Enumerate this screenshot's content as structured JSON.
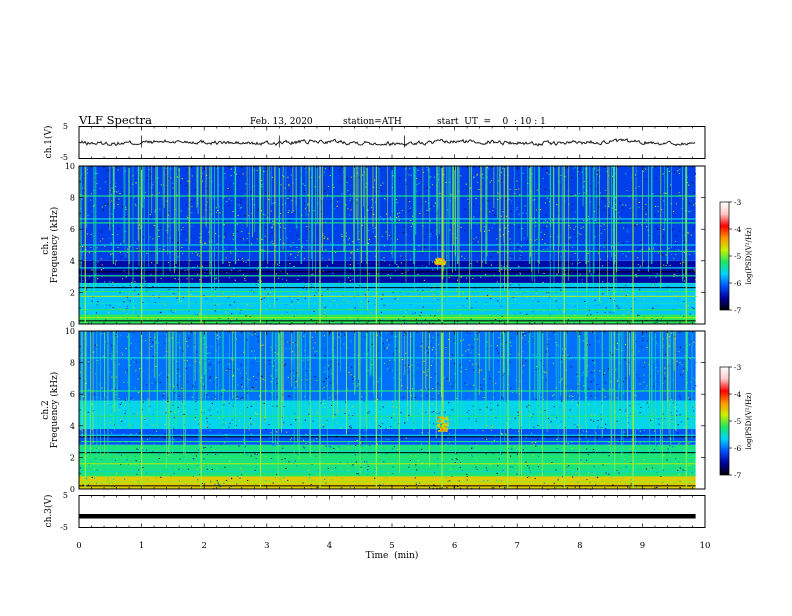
{
  "header": {
    "title": "VLF  Spectra",
    "date": "Feb. 13, 2020",
    "station": "station=ATH",
    "start_ut": "start  UT  =    0  : 10 : 1"
  },
  "colors": {
    "trace": "#1a1a1a",
    "spectrogram_base": "#00129a",
    "spectrogram_band": "#1e64ff",
    "emission": "#1ee6a0",
    "sferic": "#9ff03c",
    "ch3_trace": "#000000"
  },
  "colorbar": {
    "label": "log(PSD)(V²/Hz)",
    "ticks": [
      "-3",
      "-4",
      "-5",
      "-6",
      "-7"
    ],
    "stops": [
      "#000000",
      "#00009a",
      "#0050ff",
      "#00d2ff",
      "#1ee664",
      "#c8f000",
      "#ff9600",
      "#ff0000",
      "#ffc8c8",
      "#ffffff"
    ]
  },
  "chart_data": [
    {
      "type": "line",
      "name": "ch1-waveform",
      "ylabel": "ch.1(V)",
      "ylim": [
        -5,
        5
      ],
      "yticks": [
        "5",
        "-5"
      ],
      "xlim": [
        0,
        10
      ],
      "data_end_min": 9.85,
      "x_minor_step": 0.2
    },
    {
      "type": "heatmap",
      "name": "ch1-spectrogram",
      "ylabel_top": "ch.1",
      "ylabel": "Frequency  (kHz)",
      "ylim": [
        0,
        10
      ],
      "yticks": [
        "0",
        "2",
        "4",
        "6",
        "8",
        "10"
      ],
      "xlim": [
        0,
        10
      ],
      "data_end_min": 9.85,
      "z_range": [
        -7,
        -3
      ],
      "background_bands_khz": [
        {
          "from": 0.0,
          "to": 0.6,
          "level": -5.2
        },
        {
          "from": 0.6,
          "to": 2.6,
          "level": -5.7
        },
        {
          "from": 2.6,
          "to": 4.0,
          "level": -6.5
        },
        {
          "from": 4.0,
          "to": 10.0,
          "level": -6.2
        }
      ],
      "tone_lines_khz": [
        0.4,
        0.9,
        1.3,
        1.75,
        2.05,
        2.55,
        3.05,
        3.55,
        4.6,
        5.0,
        6.4,
        6.65,
        8.1
      ],
      "emissions": [
        {
          "t_min": 5.75,
          "f_min_khz": 3.8,
          "f_max_khz": 4.2
        }
      ],
      "sferic_times_min": [
        0.1,
        0.55,
        0.8,
        1.0,
        1.25,
        1.55,
        1.95,
        2.3,
        2.5,
        2.9,
        3.2,
        3.55,
        3.85,
        4.05,
        4.6,
        4.75,
        5.05,
        5.35,
        5.8,
        6.05,
        6.5,
        6.85,
        7.2,
        7.35,
        7.75,
        8.1,
        8.55,
        8.85,
        9.15,
        9.4,
        9.7
      ]
    },
    {
      "type": "heatmap",
      "name": "ch2-spectrogram",
      "ylabel_top": "ch.2",
      "ylabel": "Frequency  (kHz)",
      "ylim": [
        0,
        10
      ],
      "yticks": [
        "0",
        "2",
        "4",
        "6",
        "8",
        "10"
      ],
      "xlim": [
        0,
        10
      ],
      "data_end_min": 9.85,
      "z_range": [
        -7,
        -3
      ],
      "background_bands_khz": [
        {
          "from": 0.0,
          "to": 0.8,
          "level": -4.6
        },
        {
          "from": 0.8,
          "to": 2.8,
          "level": -5.3
        },
        {
          "from": 2.8,
          "to": 3.8,
          "level": -6.1
        },
        {
          "from": 3.8,
          "to": 5.6,
          "level": -5.6
        },
        {
          "from": 5.6,
          "to": 10.0,
          "level": -6.0
        }
      ],
      "tone_lines_khz": [
        0.45,
        0.85,
        1.1,
        1.6,
        2.0,
        2.4,
        3.0,
        3.4,
        4.6,
        5.1,
        6.2,
        8.3
      ],
      "emissions": [
        {
          "t_min": 5.8,
          "f_min_khz": 3.6,
          "f_max_khz": 4.6
        }
      ],
      "sferic_times_min": [
        0.1,
        0.55,
        0.8,
        1.0,
        1.25,
        1.55,
        1.95,
        2.3,
        2.5,
        2.9,
        3.2,
        3.55,
        3.85,
        4.05,
        4.6,
        4.75,
        5.05,
        5.35,
        5.8,
        6.05,
        6.5,
        6.85,
        7.2,
        7.35,
        7.75,
        8.1,
        8.55,
        8.85,
        9.15,
        9.4,
        9.7
      ]
    },
    {
      "type": "line",
      "name": "ch3-waveform",
      "ylabel": "ch.3(V)",
      "ylim": [
        -5,
        5
      ],
      "yticks": [
        "5",
        "-5"
      ],
      "xlim": [
        0,
        10
      ],
      "data_end_min": 9.85,
      "constant_value": -1.5
    }
  ],
  "x_axis": {
    "label": "Time  (min)",
    "ticks": [
      "0",
      "1",
      "2",
      "3",
      "4",
      "5",
      "6",
      "7",
      "8",
      "9",
      "10"
    ]
  }
}
